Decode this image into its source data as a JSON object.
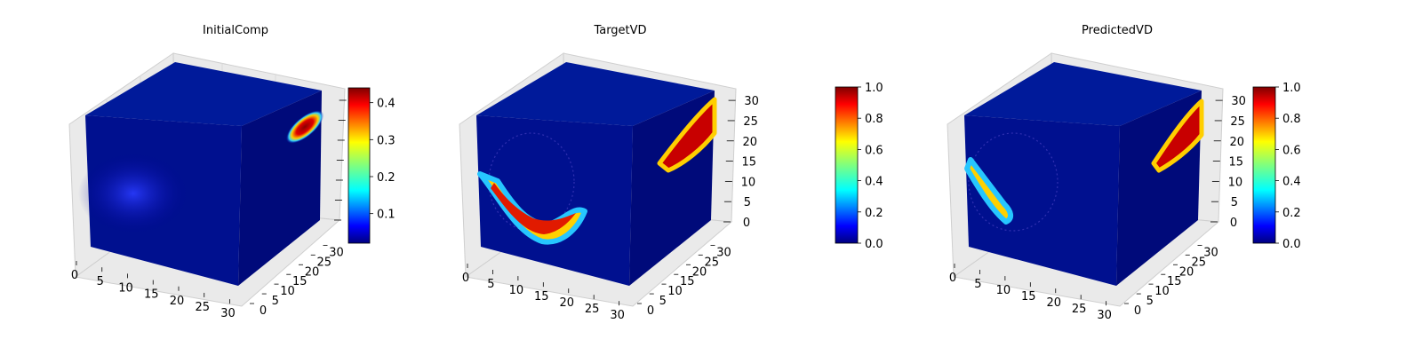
{
  "chart_data": [
    {
      "type": "voxel3d",
      "title": "InitialComp",
      "x_ticks": [
        0,
        5,
        10,
        15,
        20,
        25,
        30
      ],
      "y_ticks": [
        0,
        5,
        10,
        15,
        20,
        25,
        30
      ],
      "z_ticks": [],
      "colorbar": {
        "colormap": "jet",
        "range": [
          0.02,
          0.44
        ],
        "ticks": [
          "0.1",
          "0.2",
          "0.3",
          "0.4"
        ]
      }
    },
    {
      "type": "voxel3d",
      "title": "TargetVD",
      "x_ticks": [
        0,
        5,
        10,
        15,
        20,
        25,
        30
      ],
      "y_ticks": [
        0,
        5,
        10,
        15,
        20,
        25,
        30
      ],
      "z_ticks": [
        0,
        5,
        10,
        15,
        20,
        25,
        30
      ],
      "colorbar": {
        "colormap": "jet",
        "range": [
          0.0,
          1.0
        ],
        "ticks": [
          "0.0",
          "0.2",
          "0.4",
          "0.6",
          "0.8",
          "1.0"
        ]
      }
    },
    {
      "type": "voxel3d",
      "title": "PredictedVD",
      "x_ticks": [
        0,
        5,
        10,
        15,
        20,
        25,
        30
      ],
      "y_ticks": [
        0,
        5,
        10,
        15,
        20,
        25,
        30
      ],
      "z_ticks": [
        0,
        5,
        10,
        15,
        20,
        25,
        30
      ],
      "colorbar": {
        "colormap": "jet",
        "range": [
          0.0,
          1.0
        ],
        "ticks": [
          "0.0",
          "0.2",
          "0.4",
          "0.6",
          "0.8",
          "1.0"
        ]
      }
    }
  ]
}
